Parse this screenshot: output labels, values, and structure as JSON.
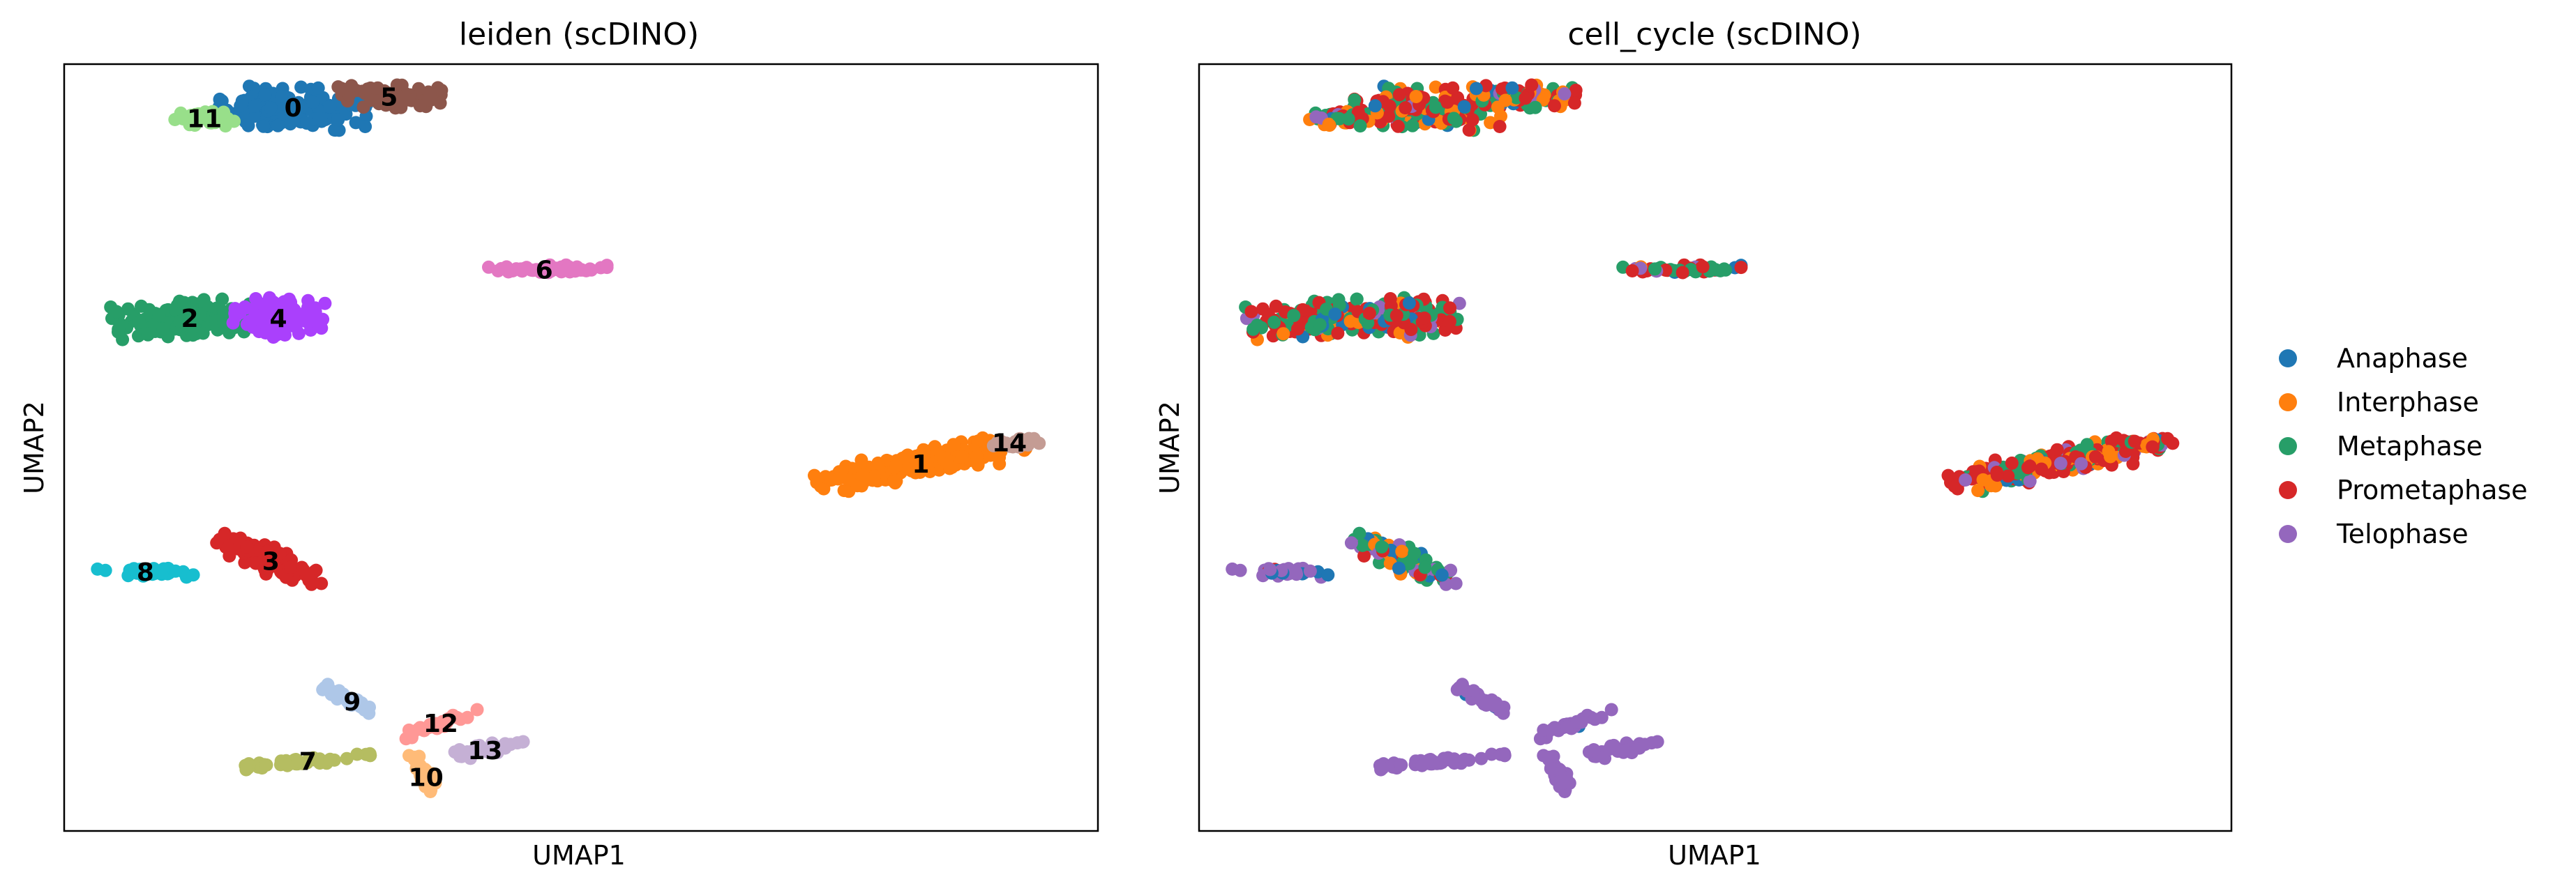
{
  "chart_data": [
    {
      "type": "scatter",
      "title": "leiden (scDINO)",
      "xlabel": "UMAP1",
      "ylabel": "UMAP2",
      "grid": false,
      "legend": "none",
      "annotation": "cluster numbers drawn at cluster centroids",
      "clusters": [
        {
          "label": "0",
          "color": "#1f77b4",
          "center": [
            -2.9,
            7.8
          ],
          "rx": 1.0,
          "ry": 0.38,
          "angle": -4,
          "n": 170
        },
        {
          "label": "1",
          "color": "#ff7f0e",
          "center": [
            5.6,
            1.2
          ],
          "rx": 1.45,
          "ry": 0.26,
          "angle": 14,
          "n": 190
        },
        {
          "label": "2",
          "color": "#279e68",
          "center": [
            -4.3,
            3.9
          ],
          "rx": 1.05,
          "ry": 0.32,
          "angle": 5,
          "n": 150
        },
        {
          "label": "3",
          "color": "#d62728",
          "center": [
            -3.2,
            -0.6
          ],
          "rx": 0.8,
          "ry": 0.24,
          "angle": -32,
          "n": 110
        },
        {
          "label": "4",
          "color": "#aa40fc",
          "center": [
            -3.1,
            3.9
          ],
          "rx": 0.6,
          "ry": 0.36,
          "angle": -6,
          "n": 100
        },
        {
          "label": "5",
          "color": "#8c564b",
          "center": [
            -1.6,
            8.0
          ],
          "rx": 0.7,
          "ry": 0.22,
          "angle": -4,
          "n": 70
        },
        {
          "label": "6",
          "color": "#e377c2",
          "center": [
            0.5,
            4.8
          ],
          "rx": 0.85,
          "ry": 0.08,
          "angle": 0,
          "n": 45
        },
        {
          "label": "7",
          "color": "#b5bd61",
          "center": [
            -2.7,
            -4.3
          ],
          "rx": 0.85,
          "ry": 0.08,
          "angle": 8,
          "n": 45
        },
        {
          "label": "8",
          "color": "#17becf",
          "center": [
            -4.9,
            -0.8
          ],
          "rx": 0.65,
          "ry": 0.08,
          "angle": -2,
          "n": 40
        },
        {
          "label": "9",
          "color": "#aec7e8",
          "center": [
            -2.1,
            -3.2
          ],
          "rx": 0.45,
          "ry": 0.08,
          "angle": -35,
          "n": 35
        },
        {
          "label": "10",
          "color": "#ffbb78",
          "center": [
            -1.1,
            -4.6
          ],
          "rx": 0.45,
          "ry": 0.1,
          "angle": -70,
          "n": 35
        },
        {
          "label": "11",
          "color": "#98df8a",
          "center": [
            -4.1,
            7.6
          ],
          "rx": 0.4,
          "ry": 0.16,
          "angle": 0,
          "n": 35
        },
        {
          "label": "12",
          "color": "#ff9896",
          "center": [
            -0.9,
            -3.6
          ],
          "rx": 0.55,
          "ry": 0.08,
          "angle": 25,
          "n": 30
        },
        {
          "label": "13",
          "color": "#c5b0d5",
          "center": [
            -0.3,
            -4.1
          ],
          "rx": 0.55,
          "ry": 0.1,
          "angle": 15,
          "n": 30
        },
        {
          "label": "14",
          "color": "#c49c94",
          "center": [
            6.8,
            1.6
          ],
          "rx": 0.45,
          "ry": 0.1,
          "angle": 5,
          "n": 30
        }
      ]
    },
    {
      "type": "scatter",
      "title": "cell_cycle (scDINO)",
      "xlabel": "UMAP1",
      "ylabel": "UMAP2",
      "grid": false,
      "legend": "right",
      "categories": [
        "Anaphase",
        "Interphase",
        "Metaphase",
        "Prometaphase",
        "Telophase"
      ],
      "colors": [
        "#1f77b4",
        "#ff7f0e",
        "#279e68",
        "#d62728",
        "#9467bd"
      ],
      "note": "same embedding as the leiden panel, points colored by cell-cycle phase",
      "cluster_composition": {
        "0": {
          "Anaphase": 0.05,
          "Interphase": 0.15,
          "Metaphase": 0.3,
          "Prometaphase": 0.45,
          "Telophase": 0.05
        },
        "1": {
          "Anaphase": 0.05,
          "Interphase": 0.2,
          "Metaphase": 0.2,
          "Prometaphase": 0.5,
          "Telophase": 0.05
        },
        "2": {
          "Anaphase": 0.1,
          "Interphase": 0.1,
          "Metaphase": 0.35,
          "Prometaphase": 0.4,
          "Telophase": 0.05
        },
        "3": {
          "Anaphase": 0.2,
          "Interphase": 0.15,
          "Metaphase": 0.35,
          "Prometaphase": 0.15,
          "Telophase": 0.15
        },
        "4": {
          "Anaphase": 0.15,
          "Interphase": 0.1,
          "Metaphase": 0.3,
          "Prometaphase": 0.4,
          "Telophase": 0.05
        },
        "5": {
          "Anaphase": 0.05,
          "Interphase": 0.25,
          "Metaphase": 0.3,
          "Prometaphase": 0.35,
          "Telophase": 0.05
        },
        "6": {
          "Anaphase": 0.1,
          "Interphase": 0.05,
          "Metaphase": 0.3,
          "Prometaphase": 0.4,
          "Telophase": 0.15
        },
        "7": {
          "Anaphase": 0.0,
          "Interphase": 0.0,
          "Metaphase": 0.0,
          "Prometaphase": 0.0,
          "Telophase": 1.0
        },
        "8": {
          "Anaphase": 0.25,
          "Interphase": 0.0,
          "Metaphase": 0.05,
          "Prometaphase": 0.05,
          "Telophase": 0.65
        },
        "9": {
          "Anaphase": 0.15,
          "Interphase": 0.0,
          "Metaphase": 0.0,
          "Prometaphase": 0.0,
          "Telophase": 0.85
        },
        "10": {
          "Anaphase": 0.0,
          "Interphase": 0.0,
          "Metaphase": 0.0,
          "Prometaphase": 0.0,
          "Telophase": 1.0
        },
        "11": {
          "Anaphase": 0.05,
          "Interphase": 0.2,
          "Metaphase": 0.25,
          "Prometaphase": 0.45,
          "Telophase": 0.05
        },
        "12": {
          "Anaphase": 0.1,
          "Interphase": 0.0,
          "Metaphase": 0.0,
          "Prometaphase": 0.0,
          "Telophase": 0.9
        },
        "13": {
          "Anaphase": 0.0,
          "Interphase": 0.0,
          "Metaphase": 0.0,
          "Prometaphase": 0.0,
          "Telophase": 1.0
        },
        "14": {
          "Anaphase": 0.05,
          "Interphase": 0.25,
          "Metaphase": 0.2,
          "Prometaphase": 0.45,
          "Telophase": 0.05
        }
      }
    }
  ]
}
